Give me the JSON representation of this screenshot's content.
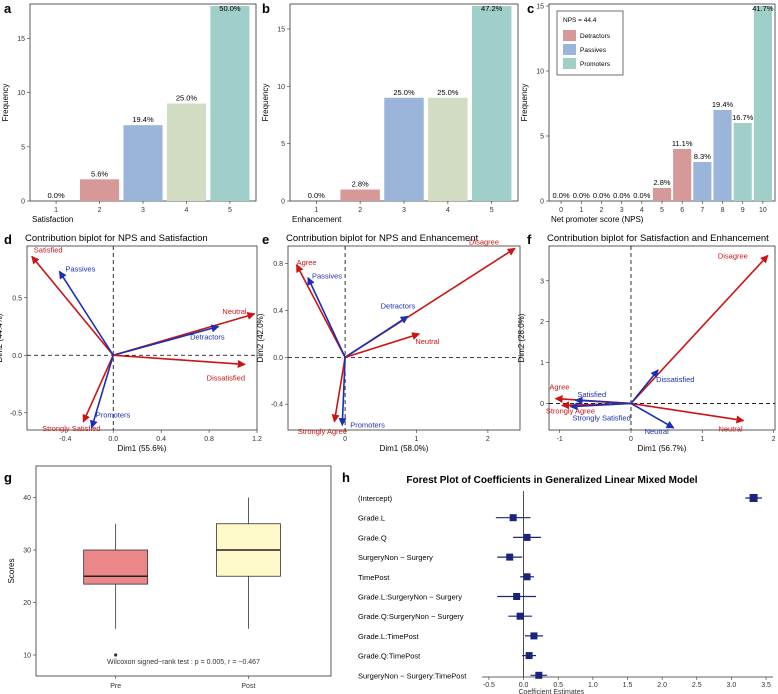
{
  "panels": {
    "a": "a",
    "b": "b",
    "c": "c",
    "d": "d",
    "e": "e",
    "f": "f",
    "g": "g",
    "h": "h"
  },
  "colors": {
    "red_bar": "#d79898",
    "blue_bar": "#9bb5da",
    "green_bar": "#d2dcc2",
    "teal_bar": "#a0cfc9",
    "red_arrow": "#cc1414",
    "blue_arrow": "#1a2fb5",
    "box_pre": "#ec8789",
    "box_post": "#fff8c9",
    "forest_marker": "#1a237e"
  },
  "chart_data": [
    {
      "id": "a",
      "type": "bar",
      "xlabel": "Satisfaction",
      "ylabel": "Frequency",
      "categories": [
        "1",
        "2",
        "3",
        "4",
        "5"
      ],
      "values": [
        0,
        2,
        7,
        9,
        18
      ],
      "labels": [
        "0.0%",
        "5.6%",
        "19.4%",
        "25.0%",
        "50.0%"
      ],
      "bar_colors": [
        "#d79898",
        "#d79898",
        "#9bb5da",
        "#d2dcc2",
        "#a0cfc9"
      ],
      "yticks": [
        0,
        5,
        10,
        15
      ],
      "ylim": [
        0,
        18
      ]
    },
    {
      "id": "b",
      "type": "bar",
      "xlabel": "Enhancement",
      "ylabel": "Frequency",
      "categories": [
        "1",
        "2",
        "3",
        "4",
        "5"
      ],
      "values": [
        0,
        1,
        9,
        9,
        17
      ],
      "labels": [
        "0.0%",
        "2.8%",
        "25.0%",
        "25.0%",
        "47.2%"
      ],
      "bar_colors": [
        "#d79898",
        "#d79898",
        "#9bb5da",
        "#d2dcc2",
        "#a0cfc9"
      ],
      "yticks": [
        0,
        5,
        10,
        15
      ],
      "ylim": [
        0,
        17
      ]
    },
    {
      "id": "c",
      "type": "bar",
      "xlabel": "Net promoter score (NPS)",
      "ylabel": "Frequency",
      "categories": [
        "0",
        "1",
        "2",
        "3",
        "4",
        "5",
        "6",
        "7",
        "8",
        "9",
        "10"
      ],
      "values": [
        0,
        0,
        0,
        0,
        0,
        1,
        4,
        3,
        7,
        6,
        15
      ],
      "labels": [
        "0.0%",
        "0.0%",
        "0.0%",
        "0.0%",
        "0.0%",
        "2.8%",
        "11.1%",
        "8.3%",
        "19.4%",
        "16.7%",
        "41.7%"
      ],
      "bar_colors": [
        "#d79898",
        "#d79898",
        "#d79898",
        "#d79898",
        "#d79898",
        "#d79898",
        "#d79898",
        "#9bb5da",
        "#9bb5da",
        "#a0cfc9",
        "#a0cfc9"
      ],
      "yticks": [
        0,
        5,
        10,
        15
      ],
      "ylim": [
        0,
        15
      ],
      "legend": {
        "title": "NPS = 44.4",
        "items": [
          {
            "label": "Detractors",
            "color": "#d79898"
          },
          {
            "label": "Passives",
            "color": "#9bb5da"
          },
          {
            "label": "Promoters",
            "color": "#a0cfc9"
          }
        ]
      }
    },
    {
      "id": "d",
      "type": "scatter",
      "subtype": "biplot",
      "title": "Contribution biplot for NPS and Satisfaction",
      "xlabel": "Dim1 (55.6%)",
      "ylabel": "Dim2 (44.4%)",
      "xlim": [
        -0.72,
        1.2
      ],
      "ylim": [
        -0.65,
        0.95
      ],
      "xticks": [
        -0.4,
        0.0,
        0.4,
        0.8,
        1.2
      ],
      "xtick_labels": [
        "-0.4",
        "0.0",
        "0.4",
        "0.8",
        "1.2"
      ],
      "yticks": [
        -0.5,
        0.0,
        0.5
      ],
      "yticks_labels": [
        "-0.5",
        "0.0",
        "0.5"
      ],
      "arrows": [
        {
          "label": "Satisfied",
          "x": -0.68,
          "y": 0.86,
          "group": "red",
          "anchor": "start",
          "dx": 2,
          "dy": -4
        },
        {
          "label": "Passives",
          "x": -0.45,
          "y": 0.73,
          "group": "blue",
          "anchor": "start",
          "dx": 6,
          "dy": 0
        },
        {
          "label": "Neutral",
          "x": 1.18,
          "y": 0.36,
          "group": "red",
          "anchor": "end",
          "dx": -8,
          "dy": 0
        },
        {
          "label": "Detractors",
          "x": 0.88,
          "y": 0.25,
          "group": "blue",
          "anchor": "end",
          "dx": 6,
          "dy": 13
        },
        {
          "label": "Dissatisfied",
          "x": 1.1,
          "y": -0.08,
          "group": "red",
          "anchor": "end",
          "dx": 0,
          "dy": 16
        },
        {
          "label": "Strongly Satisfied",
          "x": -0.25,
          "y": -0.58,
          "group": "red",
          "anchor": "middle",
          "dx": -12,
          "dy": 9
        },
        {
          "label": "Promoters",
          "x": -0.18,
          "y": -0.63,
          "group": "blue",
          "anchor": "start",
          "dx": 4,
          "dy": -10
        }
      ]
    },
    {
      "id": "e",
      "type": "scatter",
      "subtype": "biplot",
      "title": "Contribution biplot for NPS and Enhancement",
      "xlabel": "Dim1 (58.0%)",
      "ylabel": "Dim2 (42.0%)",
      "xlim": [
        -0.8,
        2.45
      ],
      "ylim": [
        -0.62,
        0.95
      ],
      "xticks": [
        0,
        1,
        2
      ],
      "xtick_labels": [
        "0",
        "1",
        "2"
      ],
      "yticks": [
        -0.4,
        0.0,
        0.4,
        0.8
      ],
      "yticks_labels": [
        "-0.4",
        "0.0",
        "0.4",
        "0.8"
      ],
      "arrows": [
        {
          "label": "Disagree",
          "x": 2.38,
          "y": 0.93,
          "group": "red",
          "anchor": "end",
          "dx": -16,
          "dy": -4
        },
        {
          "label": "Agree",
          "x": -0.68,
          "y": 0.79,
          "group": "red",
          "anchor": "start",
          "dx": 0,
          "dy": 0
        },
        {
          "label": "Passives",
          "x": -0.52,
          "y": 0.68,
          "group": "blue",
          "anchor": "start",
          "dx": 4,
          "dy": 1
        },
        {
          "label": "Detractors",
          "x": 0.88,
          "y": 0.35,
          "group": "blue",
          "anchor": "middle",
          "dx": -10,
          "dy": -8
        },
        {
          "label": "Neutral",
          "x": 1.04,
          "y": 0.2,
          "group": "red",
          "anchor": "start",
          "dx": -4,
          "dy": 10
        },
        {
          "label": "Strongly Agree",
          "x": -0.15,
          "y": -0.55,
          "group": "red",
          "anchor": "middle",
          "dx": -12,
          "dy": 12
        },
        {
          "label": "Promoters",
          "x": -0.04,
          "y": -0.58,
          "group": "blue",
          "anchor": "start",
          "dx": 8,
          "dy": 2
        }
      ]
    },
    {
      "id": "f",
      "type": "scatter",
      "subtype": "biplot",
      "title": "Contribution biplot for Satisfaction and Enhancement",
      "xlabel": "Dim1 (56.7%)",
      "ylabel": "Dim2 (28.0%)",
      "xlim": [
        -1.15,
        2.02
      ],
      "ylim": [
        -0.65,
        3.85
      ],
      "xticks": [
        -1,
        0,
        1,
        2
      ],
      "xtick_labels": [
        "-1",
        "0",
        "1",
        "2"
      ],
      "yticks": [
        0,
        1,
        2,
        3
      ],
      "yticks_labels": [
        "0",
        "1",
        "2",
        "3"
      ],
      "arrows": [
        {
          "label": "Disagree",
          "x": 1.92,
          "y": 3.62,
          "group": "red",
          "anchor": "end",
          "dx": -20,
          "dy": 3
        },
        {
          "label": "Dissatisfied",
          "x": 0.38,
          "y": 0.82,
          "group": "blue",
          "anchor": "start",
          "dx": -2,
          "dy": 12
        },
        {
          "label": "Agree",
          "x": -1.06,
          "y": 0.12,
          "group": "red",
          "anchor": "start",
          "dx": -6,
          "dy": -9
        },
        {
          "label": "Satisfied",
          "x": -0.78,
          "y": 0.08,
          "group": "blue",
          "anchor": "start",
          "dx": 2,
          "dy": -3
        },
        {
          "label": "Strongly Agree",
          "x": -0.97,
          "y": -0.05,
          "group": "red",
          "anchor": "start",
          "dx": -16,
          "dy": 8
        },
        {
          "label": "Strongly Satisfied",
          "x": -0.85,
          "y": -0.08,
          "group": "blue",
          "anchor": "start",
          "dx": 2,
          "dy": 14
        },
        {
          "label": "Neutral",
          "x": 1.58,
          "y": -0.42,
          "group": "red",
          "anchor": "end",
          "dx": -1,
          "dy": 11
        },
        {
          "label": "Neutral",
          "x": 0.6,
          "y": -0.6,
          "group": "blue",
          "anchor": "end",
          "dx": -5,
          "dy": 6
        }
      ]
    },
    {
      "id": "g",
      "type": "box",
      "ylabel": "Scores",
      "categories": [
        "Pre",
        "Post"
      ],
      "boxes": [
        {
          "name": "Pre",
          "min": 15,
          "q1": 23.5,
          "median": 25,
          "q3": 30,
          "max": 35,
          "outliers": [
            10
          ],
          "color": "#ec8789"
        },
        {
          "name": "Post",
          "min": 15,
          "q1": 25,
          "median": 30,
          "q3": 35,
          "max": 40,
          "outliers": [],
          "color": "#fff8c9"
        }
      ],
      "ylim": [
        6,
        46
      ],
      "yticks": [
        10,
        20,
        30,
        40
      ],
      "annotation": "Wilcoxon signed−rank test : p = 0.005,  r = −0.467"
    },
    {
      "id": "h",
      "type": "scatter",
      "subtype": "forest",
      "title": "Forest Plot of Coefficients in Generalized Linear Mixed Model",
      "xlabel": "Coefficient Estimates",
      "xlim": [
        -0.6,
        3.6
      ],
      "xticks": [
        -0.5,
        0.0,
        0.5,
        1.0,
        1.5,
        2.0,
        2.5,
        3.0,
        3.5
      ],
      "xtick_labels": [
        "-0.5",
        "0.0",
        "0.5",
        "1.0",
        "1.5",
        "2.0",
        "2.5",
        "3.0",
        "3.5"
      ],
      "rows": [
        {
          "term": "(Intercept)",
          "est": 3.32,
          "lo": 3.2,
          "hi": 3.44
        },
        {
          "term": "Grade.L",
          "est": -0.15,
          "lo": -0.4,
          "hi": 0.1
        },
        {
          "term": "Grade.Q",
          "est": 0.05,
          "lo": -0.15,
          "hi": 0.25
        },
        {
          "term": "SurgeryNon − Surgery",
          "est": -0.2,
          "lo": -0.38,
          "hi": -0.02
        },
        {
          "term": "TimePost",
          "est": 0.05,
          "lo": -0.05,
          "hi": 0.15
        },
        {
          "term": "Grade.L:SurgeryNon − Surgery",
          "est": -0.1,
          "lo": -0.38,
          "hi": 0.18
        },
        {
          "term": "Grade.Q:SurgeryNon − Surgery",
          "est": -0.05,
          "lo": -0.22,
          "hi": 0.12
        },
        {
          "term": "Grade.L:TimePost",
          "est": 0.15,
          "lo": 0.02,
          "hi": 0.28
        },
        {
          "term": "Grade.Q:TimePost",
          "est": 0.08,
          "lo": -0.02,
          "hi": 0.18
        },
        {
          "term": "SurgeryNon − Surgery:TimePost",
          "est": 0.22,
          "lo": 0.1,
          "hi": 0.34
        }
      ]
    }
  ]
}
